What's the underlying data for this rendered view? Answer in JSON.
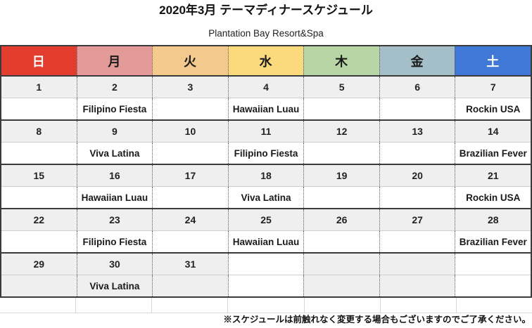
{
  "page": {
    "title": "2020年3月 テーマディナースケジュール",
    "subtitle": "Plantation Bay Resort&Spa",
    "footer_note": "※スケジュールは前触れなく変更する場合もございますのでご了承ください。"
  },
  "colors": {
    "sun": "#e23d2e",
    "mon": "#e59a9a",
    "tue": "#f4c98e",
    "wed": "#fbd97d",
    "thu": "#b8d5a5",
    "fri": "#a4bfc7",
    "sat": "#4078d8",
    "header_text_light": "#ffffff",
    "header_text_dark": "#1a1a1a",
    "cell_gray": "#efefef",
    "cell_white": "#ffffff"
  },
  "calendar": {
    "day_headers": [
      {
        "label": "日",
        "color_key": "sun",
        "text": "light"
      },
      {
        "label": "月",
        "color_key": "mon",
        "text": "dark"
      },
      {
        "label": "火",
        "color_key": "tue",
        "text": "dark"
      },
      {
        "label": "水",
        "color_key": "wed",
        "text": "dark"
      },
      {
        "label": "木",
        "color_key": "thu",
        "text": "dark"
      },
      {
        "label": "金",
        "color_key": "fri",
        "text": "dark"
      },
      {
        "label": "土",
        "color_key": "sat",
        "text": "light"
      }
    ],
    "weeks": [
      {
        "dates": [
          "1",
          "2",
          "3",
          "4",
          "5",
          "6",
          "7"
        ],
        "date_bg": [
          "g",
          "g",
          "g",
          "g",
          "g",
          "g",
          "g"
        ],
        "events": [
          "",
          "Filipino Fiesta",
          "",
          "Hawaiian Luau",
          "",
          "",
          "Rockin USA"
        ],
        "event_bg": [
          "w",
          "w",
          "w",
          "w",
          "w",
          "w",
          "w"
        ]
      },
      {
        "dates": [
          "8",
          "9",
          "10",
          "11",
          "12",
          "13",
          "14"
        ],
        "date_bg": [
          "g",
          "g",
          "g",
          "g",
          "g",
          "g",
          "g"
        ],
        "events": [
          "",
          "Viva Latina",
          "",
          "Filipino Fiesta",
          "",
          "",
          "Brazilian Fever"
        ],
        "event_bg": [
          "w",
          "w",
          "w",
          "w",
          "w",
          "w",
          "w"
        ]
      },
      {
        "dates": [
          "15",
          "16",
          "17",
          "18",
          "19",
          "20",
          "21"
        ],
        "date_bg": [
          "g",
          "g",
          "g",
          "g",
          "g",
          "g",
          "g"
        ],
        "events": [
          "",
          "Hawaiian Luau",
          "",
          "Viva Latina",
          "",
          "",
          "Rockin USA"
        ],
        "event_bg": [
          "w",
          "w",
          "w",
          "w",
          "w",
          "w",
          "w"
        ]
      },
      {
        "dates": [
          "22",
          "23",
          "24",
          "25",
          "26",
          "27",
          "28"
        ],
        "date_bg": [
          "g",
          "g",
          "g",
          "g",
          "g",
          "g",
          "g"
        ],
        "events": [
          "",
          "Filipino Fiesta",
          "",
          "Hawaiian Luau",
          "",
          "",
          "Brazilian Fever"
        ],
        "event_bg": [
          "w",
          "w",
          "w",
          "w",
          "w",
          "w",
          "w"
        ]
      },
      {
        "dates": [
          "29",
          "30",
          "31",
          "",
          "",
          "",
          ""
        ],
        "date_bg": [
          "g",
          "g",
          "g",
          "w",
          "g",
          "g",
          "w"
        ],
        "events": [
          "",
          "Viva Latina",
          "",
          "",
          "",
          "",
          ""
        ],
        "event_bg": [
          "g",
          "g",
          "g",
          "w",
          "g",
          "g",
          "w"
        ]
      }
    ]
  }
}
